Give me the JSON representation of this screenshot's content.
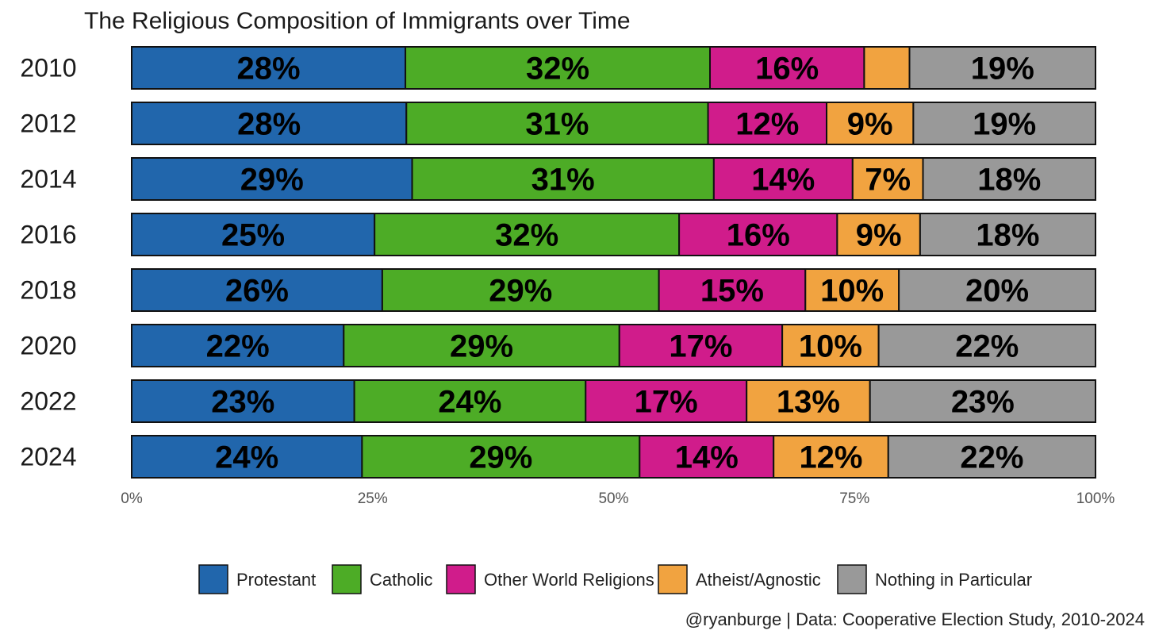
{
  "chart_data": {
    "type": "bar",
    "orientation": "horizontal",
    "stacked": true,
    "title": "The Religious Composition of Immigrants over Time",
    "categories": [
      "2010",
      "2012",
      "2014",
      "2016",
      "2018",
      "2020",
      "2022",
      "2024"
    ],
    "series": [
      {
        "name": "Protestant",
        "color": "#2166ac",
        "values": [
          28.4,
          28.5,
          29.1,
          25.2,
          26.0,
          22.0,
          23.1,
          23.9
        ],
        "labels": [
          "28%",
          "28%",
          "29%",
          "25%",
          "26%",
          "22%",
          "23%",
          "24%"
        ]
      },
      {
        "name": "Catholic",
        "color": "#4dac26",
        "values": [
          31.6,
          31.3,
          31.3,
          31.6,
          28.7,
          28.6,
          24.0,
          28.8
        ],
        "labels": [
          "32%",
          "31%",
          "31%",
          "32%",
          "29%",
          "29%",
          "24%",
          "29%"
        ]
      },
      {
        "name": "Other World Religions",
        "color": "#d01c8b",
        "values": [
          16.0,
          12.3,
          14.4,
          16.4,
          15.2,
          16.9,
          16.7,
          13.9
        ],
        "labels": [
          "16%",
          "12%",
          "14%",
          "16%",
          "15%",
          "17%",
          "17%",
          "14%"
        ]
      },
      {
        "name": "Atheist/Agnostic",
        "color": "#f1a340",
        "values": [
          4.7,
          9.0,
          7.3,
          8.6,
          9.7,
          10.0,
          12.8,
          11.9
        ],
        "labels": [
          "",
          "9%",
          "7%",
          "9%",
          "10%",
          "10%",
          "13%",
          "12%"
        ]
      },
      {
        "name": "Nothing in Particular",
        "color": "#999999",
        "values": [
          19.3,
          18.9,
          17.9,
          18.2,
          20.4,
          22.5,
          23.4,
          21.5
        ],
        "labels": [
          "19%",
          "19%",
          "18%",
          "18%",
          "20%",
          "22%",
          "23%",
          "22%"
        ]
      }
    ],
    "xlim": [
      0,
      100
    ],
    "x_ticks": [
      0,
      25,
      50,
      75,
      100
    ],
    "x_tick_labels": [
      "0%",
      "25%",
      "50%",
      "75%",
      "100%"
    ],
    "xlabel": "",
    "ylabel": "",
    "grid": false,
    "legend_position": "bottom"
  },
  "caption": "@ryanburge | Data: Cooperative Election Study, 2010-2024"
}
